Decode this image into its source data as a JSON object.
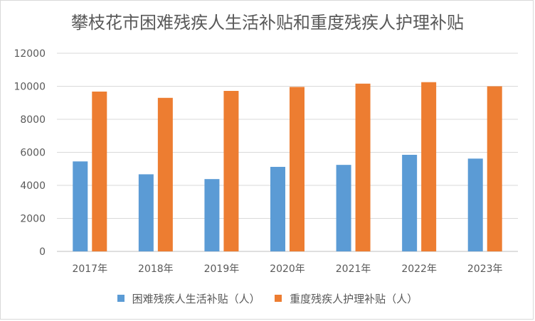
{
  "chart_data": {
    "type": "bar",
    "title": "攀枝花市困难残疾人生活补贴和重度残疾人护理补贴",
    "categories": [
      "2017年",
      "2018年",
      "2019年",
      "2020年",
      "2021年",
      "2022年",
      "2023年"
    ],
    "series": [
      {
        "name": "困难残疾人生活补贴（人）",
        "color": "#5b9bd5",
        "values": [
          5450,
          4670,
          4380,
          5120,
          5240,
          5850,
          5620
        ]
      },
      {
        "name": "重度残疾人护理补贴（人）",
        "color": "#ed7d31",
        "values": [
          9680,
          9300,
          9720,
          9960,
          10160,
          10250,
          10000
        ]
      }
    ],
    "xlabel": "",
    "ylabel": "",
    "ylim": [
      0,
      12000
    ],
    "yticks": [
      "0",
      "2000",
      "4000",
      "6000",
      "8000",
      "10000",
      "12000"
    ],
    "grid": true,
    "legend_position": "bottom"
  }
}
